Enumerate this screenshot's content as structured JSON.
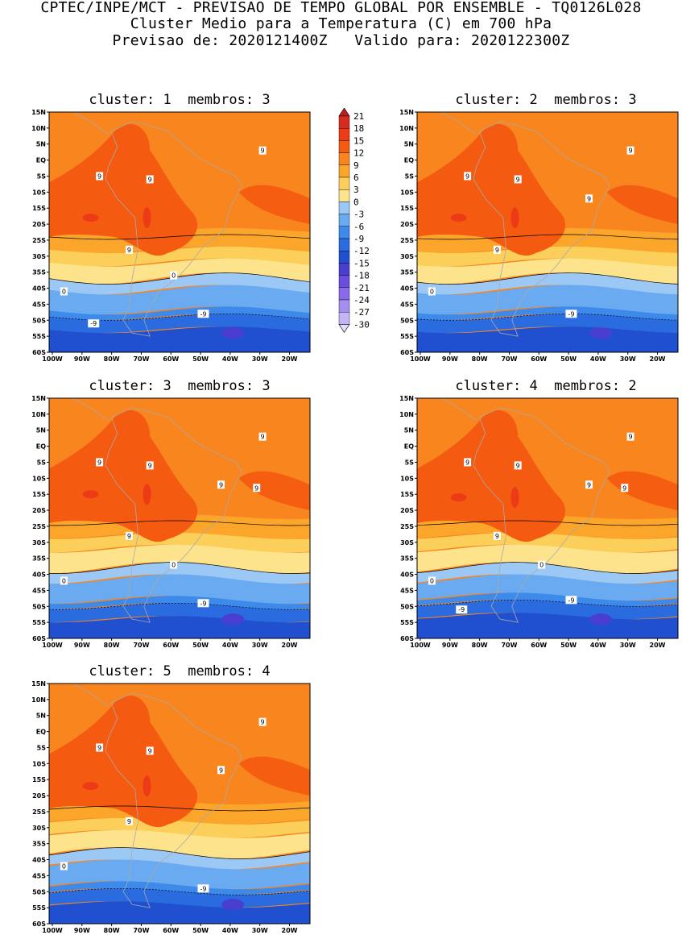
{
  "header": {
    "line1": "CPTEC/INPE/MCT - PREVISAO DE TEMPO GLOBAL POR ENSEMBLE - TQ0126L028",
    "line2": "Cluster Medio para a Temperatura (C) em 700 hPa",
    "line3": "Previsao de: 2020121400Z   Valido para: 2020122300Z"
  },
  "clusters": [
    {
      "title": "cluster: 1  membros: 3"
    },
    {
      "title": "cluster: 2  membros: 3"
    },
    {
      "title": "cluster: 3  membros: 3"
    },
    {
      "title": "cluster: 4  membros: 2"
    },
    {
      "title": "cluster: 5  membros: 4"
    }
  ],
  "axes": {
    "lat_ticks": [
      "15N",
      "10N",
      "5N",
      "EQ",
      "5S",
      "10S",
      "15S",
      "20S",
      "25S",
      "30S",
      "35S",
      "40S",
      "45S",
      "50S",
      "55S",
      "60S"
    ],
    "lon_ticks": [
      "100W",
      "90W",
      "80W",
      "70W",
      "60W",
      "50W",
      "40W",
      "30W",
      "20W"
    ]
  },
  "colorbar": {
    "levels": [
      "21",
      "18",
      "15",
      "12",
      "9",
      "6",
      "3",
      "0",
      "-3",
      "-6",
      "-9",
      "-12",
      "-15",
      "-18",
      "-21",
      "-24",
      "-27",
      "-30"
    ],
    "colors": [
      "#b82020",
      "#d72a20",
      "#ee3b17",
      "#f45a10",
      "#f9851e",
      "#fba52a",
      "#fccf5a",
      "#fde48c",
      "#9cc8f5",
      "#6aaaf0",
      "#3d8aea",
      "#2a6ce0",
      "#2050d0",
      "#4a3ed0",
      "#6a4ee0",
      "#8a6aea",
      "#a58ef0",
      "#c4b6f6",
      "#e4dcfb"
    ]
  },
  "chart_data": {
    "type": "heatmap",
    "title": "Cluster Medio para a Temperatura (C) em 700 hPa",
    "variable": "Temperature at 700 hPa (C)",
    "lat_range": [
      "60S",
      "15N"
    ],
    "lon_range": [
      "100W",
      "12W"
    ],
    "contour_labels": [
      "9",
      "0",
      "-9"
    ],
    "panels": [
      {
        "cluster": 1,
        "members": 3,
        "zero_line_lat": -37,
        "minus9_line_lat": -49,
        "warm_core_lat": -18,
        "labels": [
          "9",
          "9",
          "9",
          "9",
          "0",
          "0",
          "-9",
          "-9"
        ]
      },
      {
        "cluster": 2,
        "members": 3,
        "zero_line_lat": -37,
        "minus9_line_lat": -49,
        "warm_core_lat": -18,
        "labels": [
          "9",
          "9",
          "9",
          "9",
          "9",
          "0",
          "-9"
        ]
      },
      {
        "cluster": 3,
        "members": 3,
        "zero_line_lat": -38,
        "minus9_line_lat": -50,
        "warm_core_lat": -15,
        "labels": [
          "9",
          "9",
          "9",
          "9",
          "9",
          "9",
          "0",
          "0",
          "-9"
        ]
      },
      {
        "cluster": 4,
        "members": 2,
        "zero_line_lat": -38,
        "minus9_line_lat": -49,
        "warm_core_lat": -16,
        "labels": [
          "9",
          "9",
          "9",
          "9",
          "9",
          "9",
          "0",
          "0",
          "-9",
          "-9"
        ]
      },
      {
        "cluster": 5,
        "members": 4,
        "zero_line_lat": -38,
        "minus9_line_lat": -50,
        "warm_core_lat": -17,
        "labels": [
          "9",
          "9",
          "9",
          "9",
          "9",
          "0",
          "-9"
        ]
      }
    ]
  }
}
